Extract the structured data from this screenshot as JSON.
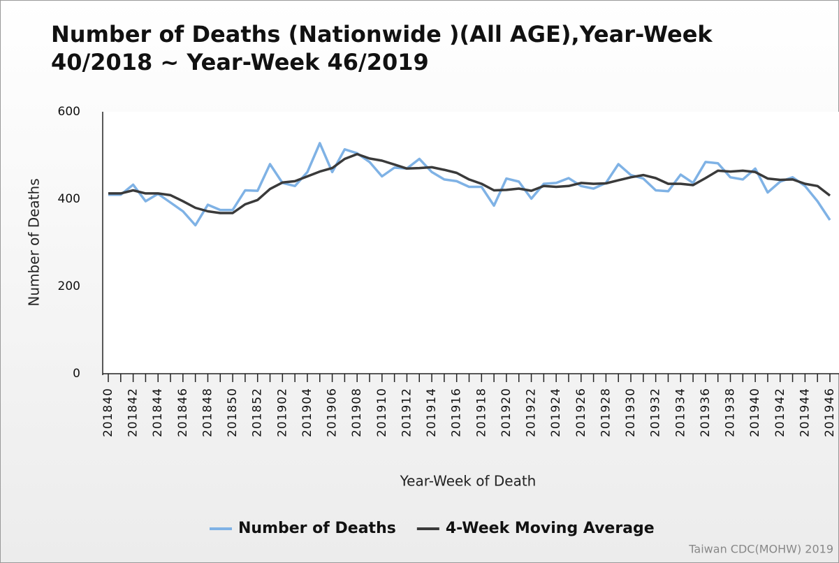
{
  "chart_data": {
    "type": "line",
    "title": [
      "Number of Deaths (Nationwide )(All AGE),Year-Week",
      "40/2018 ~ Year-Week 46/2019"
    ],
    "x_label": "Year-Week of Death",
    "y_label": "Number of Deaths",
    "source": "Taiwan CDC(MOHW) 2019",
    "categories": [
      "201840",
      null,
      "201842",
      null,
      "201844",
      null,
      "201846",
      null,
      "201848",
      null,
      "201850",
      null,
      "201852",
      null,
      "201902",
      null,
      "201904",
      null,
      "201906",
      null,
      "201908",
      null,
      "201910",
      null,
      "201912",
      null,
      "201914",
      null,
      "201916",
      null,
      "201918",
      null,
      "201920",
      null,
      "201922",
      null,
      "201924",
      null,
      "201926",
      null,
      "201928",
      null,
      "201930",
      null,
      "201932",
      null,
      "201934",
      null,
      "201936",
      null,
      "201938",
      null,
      "201940",
      null,
      "201942",
      null,
      "201944",
      null,
      "201946"
    ],
    "series": [
      {
        "name": "Number of Deaths",
        "color": "#7fb2e5",
        "values": [
          410,
          410,
          433,
          395,
          412,
          392,
          372,
          340,
          387,
          375,
          375,
          420,
          419,
          480,
          437,
          430,
          462,
          528,
          462,
          514,
          505,
          485,
          452,
          472,
          470,
          492,
          462,
          445,
          441,
          428,
          428,
          385,
          447,
          440,
          401,
          435,
          437,
          448,
          430,
          424,
          437,
          480,
          455,
          447,
          420,
          418,
          456,
          437,
          485,
          482,
          450,
          445,
          470,
          415,
          440,
          450,
          430,
          395,
          352
        ]
      },
      {
        "name": "4-Week Moving Average",
        "color": "#3a3a3a",
        "values": [
          413,
          413,
          420,
          413,
          413,
          409,
          395,
          380,
          372,
          368,
          368,
          388,
          398,
          423,
          438,
          441,
          452,
          463,
          471,
          492,
          503,
          493,
          488,
          479,
          470,
          471,
          473,
          467,
          460,
          445,
          435,
          420,
          421,
          424,
          419,
          430,
          428,
          430,
          437,
          435,
          436,
          443,
          450,
          455,
          448,
          435,
          435,
          432,
          448,
          465,
          463,
          465,
          462,
          447,
          444,
          445,
          435,
          430,
          408
        ]
      }
    ],
    "ylim": [
      0,
      600
    ],
    "yticks": [
      0,
      200,
      400,
      600
    ],
    "grid": false
  }
}
